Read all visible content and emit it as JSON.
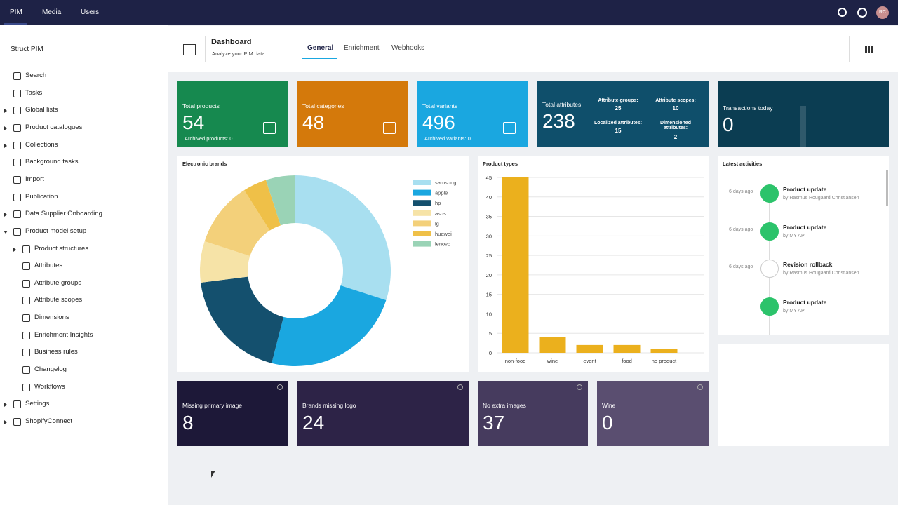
{
  "nav": {
    "tabs": [
      "PIM",
      "Media",
      "Users"
    ],
    "avatar": "RC"
  },
  "sidebar": {
    "title": "Struct PIM",
    "items": [
      "Search",
      "Tasks",
      "Global lists",
      "Product catalogues",
      "Collections",
      "Background tasks",
      "Import",
      "Publication",
      "Data Supplier Onboarding",
      "Product model setup",
      "Product structures",
      "Attributes",
      "Attribute groups",
      "Attribute scopes",
      "Dimensions",
      "Enrichment Insights",
      "Business rules",
      "Changelog",
      "Workflows",
      "Settings",
      "ShopifyConnect"
    ]
  },
  "header": {
    "title": "Dashboard",
    "subtitle": "Analyze your PIM data",
    "tabs": [
      "General",
      "Enrichment",
      "Webhooks"
    ]
  },
  "tiles": [
    {
      "label": "Total products",
      "value": 54,
      "sub": "Archived products: 0",
      "color": "#16894f"
    },
    {
      "label": "Total categories",
      "value": 48,
      "color": "#d4790b"
    },
    {
      "label": "Total variants",
      "value": 496,
      "sub": "Archived variants: 0",
      "color": "#1aa7e0"
    },
    {
      "label": "Total attributes",
      "value": 238,
      "color": "#0f4f6b",
      "stats": [
        {
          "label": "Attribute groups:",
          "value": 25
        },
        {
          "label": "Attribute scopes:",
          "value": 10
        },
        {
          "label": "Localized attributes:",
          "value": 15
        },
        {
          "label": "Dimensioned attributes:",
          "value": 2
        }
      ]
    },
    {
      "label": "Transactions today",
      "value": 0,
      "color": "#0b3d52"
    }
  ],
  "chart_data": [
    {
      "type": "pie",
      "title": "Electronic brands",
      "categories": [
        "samsung",
        "apple",
        "hp",
        "asus",
        "lg",
        "huawei",
        "lenovo"
      ],
      "values": [
        30,
        24,
        19,
        7,
        11,
        4,
        5
      ],
      "colors": [
        "#a8dff0",
        "#1aa7e0",
        "#14506e",
        "#f6e3a7",
        "#f3d07a",
        "#efc048",
        "#9ad3b6"
      ]
    },
    {
      "type": "bar",
      "title": "Product types",
      "categories": [
        "non-food",
        "wine",
        "event",
        "food",
        "no product"
      ],
      "values": [
        45,
        4,
        2,
        2,
        1
      ],
      "color": "#ebb01d",
      "ylim": [
        0,
        46
      ],
      "yticks": [
        0,
        5,
        10,
        15,
        20,
        25,
        30,
        35,
        40,
        45
      ],
      "grid": true
    }
  ],
  "activities": {
    "title": "Latest activities",
    "items": [
      {
        "time": "6 days ago",
        "title": "Product update",
        "by": "by Rasmus Hougaard Christiansen"
      },
      {
        "time": "6 days ago",
        "title": "Product update",
        "by": "by MY API"
      },
      {
        "time": "6 days ago",
        "title": "Revision rollback",
        "by": "by Rasmus Hougaard Christiansen"
      },
      {
        "title": "Product update",
        "by": "by MY API"
      }
    ]
  },
  "bottom_tiles": [
    {
      "label": "Missing primary image",
      "value": 8,
      "color": "#1d1838"
    },
    {
      "label": "Brands missing logo",
      "value": 24,
      "color": "#2d2347"
    },
    {
      "label": "No extra images",
      "value": 37,
      "color": "#463b5e"
    },
    {
      "label": "Wine",
      "value": 0,
      "color": "#5a4e70"
    }
  ]
}
